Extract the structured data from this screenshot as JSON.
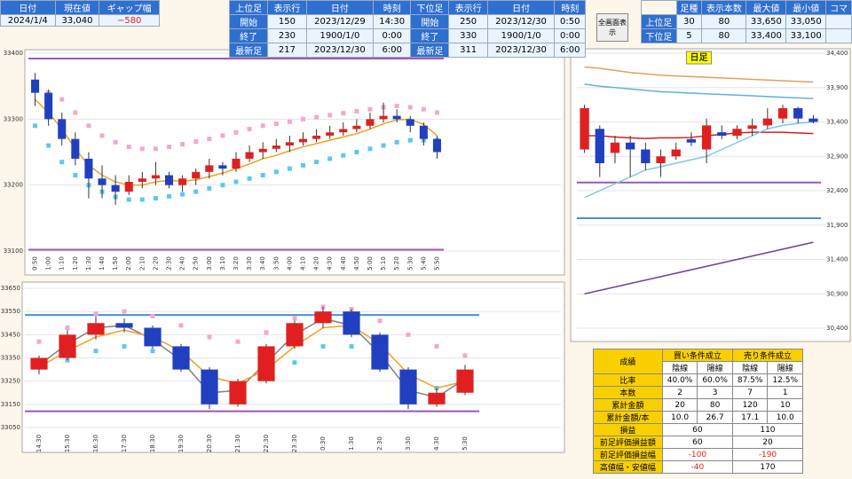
{
  "top_left": {
    "headers": [
      "日付",
      "現在値",
      "ギャップ幅"
    ],
    "values": [
      "2024/1/4",
      "33,040",
      "−580"
    ]
  },
  "upper_table": {
    "headers": [
      "上位足",
      "表示行",
      "日付",
      "時刻",
      "下位足",
      "表示行",
      "日付",
      "時刻"
    ],
    "rows": [
      [
        "開始",
        150,
        "2023/12/29",
        "14:30",
        "開始",
        250,
        "2023/12/30",
        "0:50"
      ],
      [
        "終了",
        230,
        "1900/1/0",
        "0:00",
        "終了",
        330,
        "1900/1/0",
        "0:00"
      ],
      [
        "最新足",
        217,
        "2023/12/30",
        "6:00",
        "最新足",
        311,
        "2023/12/30",
        "6:00"
      ]
    ]
  },
  "button": "全画面表示",
  "right_table": {
    "headers": [
      "",
      "足種",
      "表示本数",
      "最大値",
      "最小値",
      "コマ"
    ],
    "rows": [
      [
        "上位足",
        30,
        80,
        "33,650",
        "33,050",
        ""
      ],
      [
        "下位足",
        5,
        80,
        "33,400",
        "33,100",
        ""
      ]
    ]
  },
  "stats": {
    "title": "成績",
    "groups": [
      "買い条件成立",
      "売り条件成立"
    ],
    "sub": [
      "陰線",
      "陽線",
      "陰線",
      "陽線"
    ],
    "rows": [
      {
        "label": "比率",
        "values": [
          "40.0%",
          "60.0%",
          "87.5%",
          "12.5%"
        ]
      },
      {
        "label": "本数",
        "values": [
          2,
          3,
          7,
          1
        ]
      },
      {
        "label": "累計金額",
        "values": [
          20,
          80,
          120,
          10
        ]
      },
      {
        "label": "累計金額/本",
        "values": [
          "10.0",
          "26.7",
          "17.1",
          "10.0"
        ]
      },
      {
        "label": "損益",
        "values": [
          60,
          110
        ]
      },
      {
        "label": "前足評価損益額",
        "values": [
          60,
          20
        ]
      },
      {
        "label": "前足評価損益幅",
        "values": [
          -100,
          -190
        ]
      },
      {
        "label": "高値幅・安値幅",
        "values": [
          -40,
          170
        ]
      }
    ]
  },
  "chart_data": [
    {
      "type": "candlestick",
      "ylim": [
        33100,
        33400
      ],
      "yticks": [
        33100,
        33200,
        33300,
        33400
      ],
      "grid": true,
      "categories": [
        "0:50",
        "1:00",
        "1:10",
        "1:20",
        "1:30",
        "1:40",
        "1:50",
        "2:00",
        "2:10",
        "2:20",
        "2:30",
        "2:40",
        "2:50",
        "3:00",
        "3:10",
        "3:20",
        "3:30",
        "3:40",
        "3:50",
        "4:00",
        "4:10",
        "4:20",
        "4:30",
        "4:40",
        "4:50",
        "5:00",
        "5:10",
        "5:20",
        "5:30",
        "5:40",
        "5:50"
      ],
      "candles": [
        [
          33360,
          33370,
          33320,
          33340
        ],
        [
          33340,
          33345,
          33290,
          33300
        ],
        [
          33300,
          33310,
          33260,
          33270
        ],
        [
          33270,
          33280,
          33230,
          33240
        ],
        [
          33240,
          33250,
          33180,
          33210
        ],
        [
          33210,
          33230,
          33180,
          33200
        ],
        [
          33200,
          33215,
          33170,
          33190
        ],
        [
          33190,
          33215,
          33185,
          33205
        ],
        [
          33205,
          33220,
          33195,
          33210
        ],
        [
          33210,
          33235,
          33200,
          33215
        ],
        [
          33215,
          33220,
          33195,
          33200
        ],
        [
          33200,
          33215,
          33190,
          33210
        ],
        [
          33210,
          33225,
          33200,
          33220
        ],
        [
          33220,
          33240,
          33210,
          33230
        ],
        [
          33230,
          33235,
          33215,
          33225
        ],
        [
          33225,
          33250,
          33220,
          33240
        ],
        [
          33240,
          33260,
          33235,
          33250
        ],
        [
          33250,
          33265,
          33240,
          33255
        ],
        [
          33255,
          33270,
          33250,
          33260
        ],
        [
          33260,
          33275,
          33250,
          33265
        ],
        [
          33265,
          33280,
          33260,
          33270
        ],
        [
          33270,
          33285,
          33265,
          33275
        ],
        [
          33275,
          33290,
          33270,
          33280
        ],
        [
          33280,
          33295,
          33275,
          33285
        ],
        [
          33285,
          33300,
          33280,
          33290
        ],
        [
          33290,
          33310,
          33285,
          33300
        ],
        [
          33300,
          33325,
          33295,
          33305
        ],
        [
          33305,
          33315,
          33295,
          33300
        ],
        [
          33300,
          33305,
          33280,
          33290
        ],
        [
          33290,
          33295,
          33260,
          33270
        ],
        [
          33270,
          33275,
          33240,
          33250
        ]
      ],
      "series": [
        {
          "style": "marker",
          "color": "#f4a6d0",
          "values": [
            33350,
            33340,
            33330,
            33310,
            33290,
            33275,
            33265,
            33258,
            33255,
            33255,
            33258,
            33262,
            33266,
            33270,
            33275,
            33280,
            33285,
            33290,
            33293,
            33296,
            33300,
            33303,
            33306,
            33309,
            33312,
            33315,
            33318,
            33320,
            33318,
            33315,
            33310
          ]
        },
        {
          "style": "marker",
          "color": "#5bc8f0",
          "values": [
            33290,
            33260,
            33235,
            33215,
            33200,
            33190,
            33182,
            33178,
            33178,
            33180,
            33183,
            33186,
            33190,
            33195,
            33200,
            33205,
            33210,
            33215,
            33220,
            33225,
            33230,
            33235,
            33240,
            33245,
            33250,
            33255,
            33260,
            33265,
            33268,
            33268,
            33268
          ]
        },
        {
          "style": "line",
          "color": "#f0a020",
          "values": [
            33330,
            33310,
            33285,
            33255,
            33230,
            33215,
            33205,
            33200,
            33200,
            33205,
            33207,
            33206,
            33208,
            33213,
            33218,
            33225,
            33232,
            33240,
            33245,
            33252,
            33258,
            33263,
            33268,
            33273,
            33278,
            33285,
            33293,
            33299,
            33300,
            33292,
            33275
          ]
        }
      ],
      "hlines": [
        {
          "value": 33392,
          "color": "#9b59b6"
        },
        {
          "value": 33102,
          "color": "#9b59b6"
        }
      ]
    },
    {
      "type": "candlestick",
      "ylim": [
        33050,
        33650
      ],
      "yticks": [
        33050,
        33150,
        33250,
        33350,
        33450,
        33550,
        33650
      ],
      "grid": true,
      "categories": [
        "14:30",
        "15:30",
        "16:30",
        "17:30",
        "18:30",
        "19:30",
        "20:30",
        "21:30",
        "22:30",
        "23:30",
        "0:30",
        "1:30",
        "2:30",
        "3:30",
        "4:30",
        "5:30"
      ],
      "candles": [
        [
          33300,
          33360,
          33280,
          33350
        ],
        [
          33350,
          33470,
          33340,
          33450
        ],
        [
          33450,
          33530,
          33430,
          33500
        ],
        [
          33500,
          33520,
          33460,
          33480
        ],
        [
          33480,
          33490,
          33390,
          33400
        ],
        [
          33400,
          33410,
          33290,
          33300
        ],
        [
          33300,
          33310,
          33130,
          33150
        ],
        [
          33150,
          33260,
          33140,
          33250
        ],
        [
          33250,
          33410,
          33240,
          33400
        ],
        [
          33400,
          33510,
          33390,
          33500
        ],
        [
          33500,
          33570,
          33480,
          33550
        ],
        [
          33550,
          33560,
          33440,
          33450
        ],
        [
          33450,
          33460,
          33290,
          33300
        ],
        [
          33300,
          33310,
          33130,
          33150
        ],
        [
          33150,
          33220,
          33140,
          33200
        ],
        [
          33200,
          33320,
          33190,
          33300
        ]
      ],
      "series": [
        {
          "style": "marker",
          "color": "#f4a6d0",
          "values": [
            33420,
            33480,
            33540,
            33550,
            33530,
            33490,
            33440,
            33420,
            33460,
            33520,
            33570,
            33560,
            33510,
            33450,
            33400,
            33360
          ]
        },
        {
          "style": "marker",
          "color": "#5bc8f0",
          "values": [
            33320,
            33340,
            33380,
            33400,
            33380,
            33330,
            33250,
            33220,
            33260,
            33330,
            33400,
            33400,
            33350,
            33270,
            33220,
            33230
          ]
        },
        {
          "style": "line",
          "color": "#808080",
          "values": [
            33320,
            33410,
            33480,
            33490,
            33430,
            33340,
            33200,
            33210,
            33330,
            33450,
            33520,
            33490,
            33370,
            33210,
            33180,
            33260
          ]
        },
        {
          "style": "line",
          "color": "#f0a020",
          "values": [
            33310,
            33380,
            33440,
            33470,
            33440,
            33380,
            33270,
            33240,
            33300,
            33400,
            33480,
            33490,
            33410,
            33280,
            33220,
            33250
          ]
        }
      ],
      "hlines": [
        {
          "value": 33535,
          "color": "#4a90d9"
        },
        {
          "value": 33120,
          "color": "#9b59b6"
        }
      ]
    },
    {
      "type": "candlestick",
      "title": "日足",
      "ylim": [
        30400,
        34400
      ],
      "grid": true,
      "yticks": [
        {
          "value": 30400,
          "label": "30,400"
        },
        {
          "value": 30900,
          "label": "30,900"
        },
        {
          "value": 31400,
          "label": "31,400"
        },
        {
          "value": 31900,
          "label": "31,900"
        },
        {
          "value": 32400,
          "label": "32,400"
        },
        {
          "value": 32900,
          "label": "32,900"
        },
        {
          "value": 33400,
          "label": "33,400"
        },
        {
          "value": 33900,
          "label": "33,900"
        },
        {
          "value": 34400,
          "label": "34,400"
        }
      ],
      "candles": [
        [
          33000,
          33650,
          32950,
          33600
        ],
        [
          33300,
          33350,
          32600,
          32800
        ],
        [
          32950,
          33200,
          32800,
          33100
        ],
        [
          33100,
          33200,
          32600,
          33000
        ],
        [
          33000,
          33100,
          32700,
          32800
        ],
        [
          32800,
          33000,
          32600,
          32900
        ],
        [
          32900,
          33100,
          32850,
          33000
        ],
        [
          33150,
          33250,
          33050,
          33100
        ],
        [
          33000,
          33450,
          32800,
          33350
        ],
        [
          33250,
          33350,
          33150,
          33200
        ],
        [
          33200,
          33350,
          33150,
          33300
        ],
        [
          33300,
          33450,
          33200,
          33350
        ],
        [
          33350,
          33600,
          33300,
          33450
        ],
        [
          33450,
          33650,
          33380,
          33600
        ],
        [
          33600,
          33620,
          33380,
          33450
        ],
        [
          33450,
          33500,
          33380,
          33400
        ]
      ],
      "series": [
        {
          "style": "line",
          "color": "#e0a060",
          "values": [
            34200,
            34180,
            34150,
            34120,
            34100,
            34080,
            34070,
            34060,
            34050,
            34040,
            34030,
            34020,
            34010,
            34000,
            33990,
            33980
          ]
        },
        {
          "style": "line",
          "color": "#60b0e0",
          "values": [
            33950,
            33920,
            33900,
            33880,
            33860,
            33840,
            33830,
            33820,
            33810,
            33800,
            33790,
            33780,
            33770,
            33760,
            33750,
            33740
          ]
        },
        {
          "style": "line",
          "color": "#d02020",
          "values": [
            33200,
            33200,
            33180,
            33170,
            33160,
            33170,
            33170,
            33175,
            33200,
            33220,
            33240,
            33250,
            33250,
            33250,
            33240,
            33230
          ]
        },
        {
          "style": "line",
          "color": "#80c8e8",
          "values": [
            32300,
            32400,
            32500,
            32600,
            32700,
            32750,
            32800,
            32850,
            32900,
            33000,
            33100,
            33200,
            33300,
            33350,
            33380,
            33400
          ]
        },
        {
          "style": "line",
          "color": "#7040a0",
          "values": [
            30900,
            30950,
            31000,
            31050,
            31100,
            31150,
            31200,
            31250,
            31300,
            31350,
            31400,
            31450,
            31500,
            31550,
            31600,
            31650
          ]
        }
      ],
      "hlines": [
        {
          "value": 32000,
          "color": "#4a90d9"
        },
        {
          "value": 32520,
          "color": "#9b59b6"
        }
      ]
    }
  ]
}
